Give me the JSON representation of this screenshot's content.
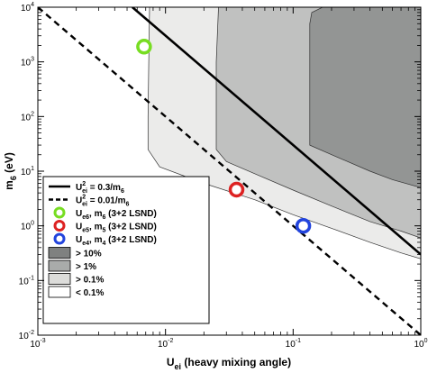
{
  "chart_data": {
    "type": "line",
    "xlabel": "U_ei (heavy mixing angle)",
    "ylabel": "m_6 (eV)",
    "x_scale": "log",
    "y_scale": "log",
    "xlim": [
      0.001,
      1
    ],
    "ylim": [
      0.01,
      10000
    ],
    "grid": false,
    "legend_position": "bottom-left",
    "x_ticks": [
      {
        "value": 0.001,
        "base": "10",
        "exp": "-3"
      },
      {
        "value": 0.01,
        "base": "10",
        "exp": "-2"
      },
      {
        "value": 0.1,
        "base": "10",
        "exp": "-1"
      },
      {
        "value": 1,
        "base": "10",
        "exp": "0"
      }
    ],
    "y_ticks": [
      {
        "value": 0.01,
        "base": "10",
        "exp": "-2"
      },
      {
        "value": 0.1,
        "base": "10",
        "exp": "-1"
      },
      {
        "value": 1,
        "base": "10",
        "exp": "0"
      },
      {
        "value": 10,
        "base": "10",
        "exp": "1"
      },
      {
        "value": 100,
        "base": "10",
        "exp": "2"
      },
      {
        "value": 1000,
        "base": "10",
        "exp": "3"
      },
      {
        "value": 10000,
        "base": "10",
        "exp": "4"
      }
    ],
    "regions": [
      {
        "name": "> 0.1%",
        "color": "#e8e8e6",
        "boundary": [
          [
            0.0075,
            10000
          ],
          [
            0.0074,
            1000
          ],
          [
            0.0073,
            100
          ],
          [
            0.0073,
            25
          ],
          [
            0.009,
            12
          ],
          [
            0.02,
            6
          ],
          [
            0.05,
            3
          ],
          [
            0.1,
            1.6
          ],
          [
            0.2,
            0.9
          ],
          [
            0.4,
            0.5
          ],
          [
            0.7,
            0.32
          ],
          [
            1,
            0.25
          ],
          [
            1,
            10000
          ]
        ]
      },
      {
        "name": "> 1%",
        "color": "#b8bab9",
        "boundary": [
          [
            0.026,
            10000
          ],
          [
            0.025,
            1000
          ],
          [
            0.025,
            100
          ],
          [
            0.025,
            25
          ],
          [
            0.03,
            15
          ],
          [
            0.05,
            9
          ],
          [
            0.1,
            4.5
          ],
          [
            0.2,
            2.3
          ],
          [
            0.4,
            1.2
          ],
          [
            0.7,
            0.8
          ],
          [
            1,
            0.6
          ],
          [
            1,
            10000
          ]
        ]
      },
      {
        "name": "> 10%",
        "color": "#8b8d8c",
        "boundary": [
          [
            0.17,
            10000
          ],
          [
            0.14,
            8000
          ],
          [
            0.135,
            5000
          ],
          [
            0.135,
            100
          ],
          [
            0.135,
            30
          ],
          [
            0.2,
            20
          ],
          [
            0.4,
            10
          ],
          [
            0.6,
            7
          ],
          [
            1,
            5
          ],
          [
            1,
            10000
          ]
        ]
      }
    ],
    "region_opacity": 0.85,
    "lines": [
      {
        "label_main": "U",
        "label_sup": "2",
        "label_sub": "ei",
        "label_rest": " = 0.3/m",
        "label_sub2": "6",
        "style": "solid",
        "width": 2.6,
        "points": [
          [
            0.0055,
            10000
          ],
          [
            1,
            0.3
          ]
        ]
      },
      {
        "label_main": "U",
        "label_sup": "2",
        "label_sub": "ei",
        "label_rest": " = 0.01/m",
        "label_sub2": "6",
        "style": "dashed",
        "width": 2.4,
        "points": [
          [
            0.001,
            10000
          ],
          [
            1,
            0.01
          ]
        ]
      }
    ],
    "points": [
      {
        "label_main": "U",
        "label_sub": "e4",
        "label_rest": ", m",
        "label_sub2": "4",
        "label_tail": " (3+2 LSND)",
        "x": 0.12,
        "y": 1.0,
        "color": "#2244dd"
      },
      {
        "label_main": "U",
        "label_sub": "e5",
        "label_rest": ", m",
        "label_sub2": "5",
        "label_tail": " (3+2 LSND)",
        "x": 0.036,
        "y": 4.6,
        "color": "#dd2222"
      },
      {
        "label_main": "U",
        "label_sub": "e6",
        "label_rest": ", m",
        "label_sub2": "6",
        "label_tail": " (3+2 LSND)",
        "x": 0.0068,
        "y": 1900,
        "color": "#77dd22"
      }
    ],
    "area_legend": [
      {
        "label": "> 10%",
        "color": "#7f8180"
      },
      {
        "label": "> 1%",
        "color": "#a9abaa"
      },
      {
        "label": "> 0.1%",
        "color": "#dcdcda"
      },
      {
        "label": "< 0.1%",
        "color": "#ffffff"
      }
    ]
  }
}
